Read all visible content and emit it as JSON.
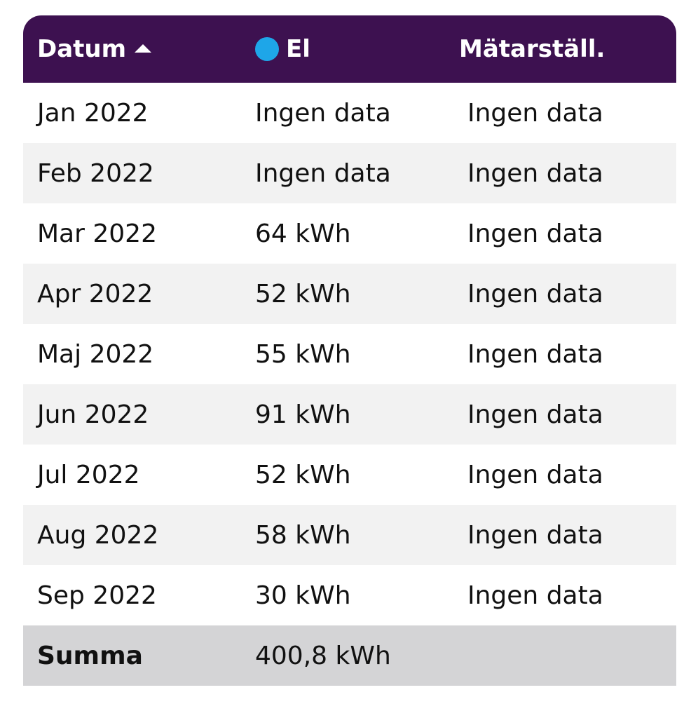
{
  "header": {
    "date_label": "Datum",
    "el_label": "El",
    "meter_label": "Mätarställ.",
    "el_color": "#1ea6e8",
    "header_bg": "#3d1150"
  },
  "rows": [
    {
      "date": "Jan 2022",
      "el": "Ingen data",
      "meter": "Ingen data"
    },
    {
      "date": "Feb 2022",
      "el": "Ingen data",
      "meter": "Ingen data"
    },
    {
      "date": "Mar 2022",
      "el": "64 kWh",
      "meter": "Ingen data"
    },
    {
      "date": "Apr 2022",
      "el": "52 kWh",
      "meter": "Ingen data"
    },
    {
      "date": "Maj 2022",
      "el": "55 kWh",
      "meter": "Ingen data"
    },
    {
      "date": "Jun 2022",
      "el": "91 kWh",
      "meter": "Ingen data"
    },
    {
      "date": "Jul 2022",
      "el": "52 kWh",
      "meter": "Ingen data"
    },
    {
      "date": "Aug 2022",
      "el": "58 kWh",
      "meter": "Ingen data"
    },
    {
      "date": "Sep 2022",
      "el": "30 kWh",
      "meter": "Ingen data"
    }
  ],
  "summary": {
    "label": "Summa",
    "el": "400,8 kWh",
    "meter": ""
  }
}
